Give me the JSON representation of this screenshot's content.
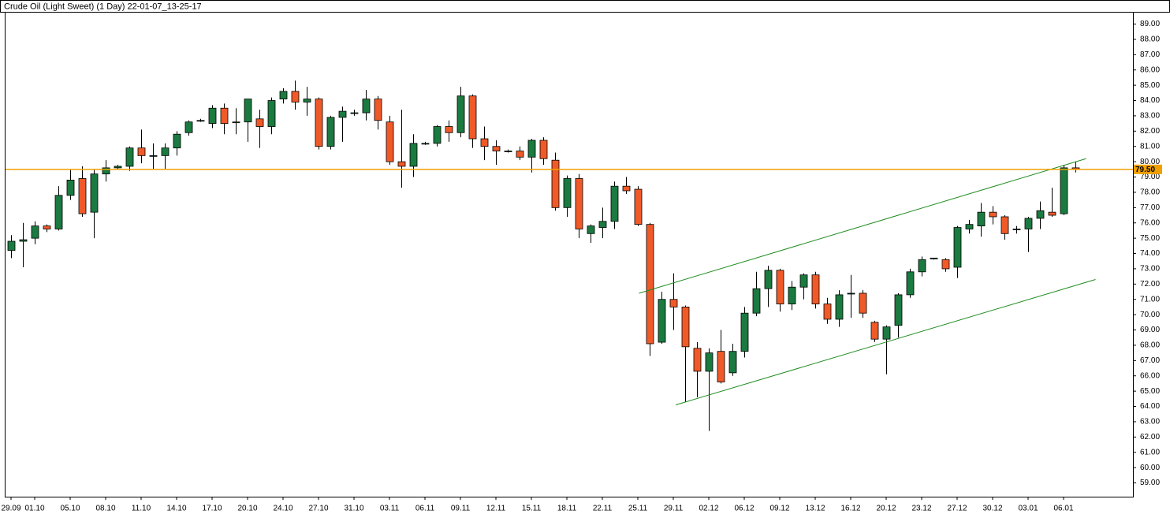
{
  "chart_data": {
    "type": "candlestick",
    "title": "Crude Oil (Light Sweet) (1 Day) 22-01-07_13-25-17",
    "categories": [
      "29.09",
      null,
      "01.10",
      null,
      null,
      "05.10",
      null,
      null,
      "08.10",
      null,
      null,
      "11.10",
      null,
      null,
      "14.10",
      null,
      null,
      "17.10",
      null,
      null,
      "20.10",
      null,
      null,
      "24.10",
      null,
      null,
      "27.10",
      null,
      null,
      "31.10",
      null,
      null,
      "03.11",
      null,
      null,
      "06.11",
      null,
      null,
      "09.11",
      null,
      null,
      "12.11",
      null,
      null,
      "15.11",
      null,
      null,
      "18.11",
      null,
      null,
      "22.11",
      null,
      null,
      "25.11",
      null,
      null,
      "29.11",
      null,
      null,
      "02.12",
      null,
      null,
      "06.12",
      null,
      null,
      "09.12",
      null,
      null,
      "13.12",
      null,
      null,
      "16.12",
      null,
      null,
      "20.12",
      null,
      null,
      "23.12",
      null,
      null,
      "27.12",
      null,
      null,
      "30.12",
      null,
      null,
      "03.01",
      null,
      null,
      "06.01",
      null
    ],
    "open": [
      74.2,
      74.8,
      75.0,
      75.8,
      75.6,
      77.8,
      78.9,
      76.7,
      79.2,
      79.6,
      79.7,
      80.9,
      80.4,
      80.4,
      80.9,
      81.9,
      82.7,
      82.5,
      83.5,
      82.6,
      82.6,
      82.8,
      82.3,
      84.1,
      84.6,
      83.9,
      84.1,
      81.0,
      82.9,
      83.2,
      83.2,
      84.1,
      82.6,
      80.0,
      79.7,
      81.2,
      81.2,
      82.3,
      81.9,
      84.3,
      81.5,
      81.0,
      80.7,
      80.7,
      80.3,
      81.4,
      80.1,
      77.0,
      78.9,
      75.3,
      75.7,
      76.1,
      78.4,
      78.2,
      75.9,
      68.2,
      71.0,
      70.5,
      67.8,
      66.3,
      67.6,
      66.2,
      67.6,
      70.1,
      71.7,
      72.9,
      70.7,
      71.8,
      72.6,
      70.7,
      69.7,
      71.4,
      71.4,
      69.5,
      68.4,
      69.3,
      71.3,
      72.8,
      73.7,
      73.6,
      73.1,
      75.6,
      75.8,
      76.7,
      76.4,
      75.6,
      75.6,
      76.3,
      76.7,
      76.6,
      79.6
    ],
    "high": [
      75.2,
      76.0,
      76.1,
      75.9,
      78.4,
      79.5,
      79.7,
      79.5,
      80.1,
      79.8,
      81.0,
      82.1,
      81.2,
      81.2,
      82.0,
      82.7,
      82.8,
      83.7,
      83.8,
      83.5,
      84.1,
      83.4,
      84.2,
      84.8,
      85.3,
      84.9,
      84.2,
      83.0,
      83.6,
      83.4,
      84.7,
      84.3,
      83.0,
      83.4,
      81.8,
      81.3,
      82.4,
      82.7,
      84.9,
      84.4,
      82.3,
      81.4,
      80.8,
      81.0,
      81.5,
      81.6,
      80.6,
      79.1,
      79.2,
      75.9,
      77.0,
      78.7,
      79.0,
      78.4,
      76.0,
      71.5,
      72.7,
      70.6,
      68.2,
      67.8,
      69.0,
      68.1,
      70.5,
      72.8,
      73.2,
      73.0,
      72.2,
      72.7,
      72.8,
      71.1,
      71.6,
      72.6,
      71.6,
      69.6,
      69.3,
      71.4,
      73.0,
      73.8,
      73.7,
      73.7,
      75.8,
      76.2,
      77.3,
      77.1,
      76.5,
      75.8,
      76.4,
      77.4,
      78.3,
      79.8,
      80.0
    ],
    "low": [
      73.7,
      73.1,
      74.6,
      75.4,
      75.5,
      77.5,
      76.4,
      75.0,
      78.7,
      79.5,
      79.4,
      79.9,
      79.5,
      79.5,
      80.4,
      81.7,
      82.6,
      82.2,
      81.8,
      81.8,
      81.3,
      80.9,
      81.8,
      83.8,
      83.4,
      83.0,
      80.8,
      80.8,
      81.3,
      83.0,
      82.7,
      82.1,
      79.8,
      78.3,
      79.0,
      81.1,
      81.0,
      81.3,
      81.6,
      80.9,
      80.1,
      79.8,
      80.6,
      80.1,
      79.3,
      79.8,
      76.8,
      76.4,
      75.0,
      74.7,
      75.0,
      75.6,
      77.9,
      75.8,
      67.3,
      68.1,
      69.0,
      64.3,
      64.6,
      62.4,
      65.5,
      66.0,
      67.2,
      69.9,
      70.5,
      70.2,
      70.3,
      71.0,
      70.4,
      69.4,
      69.2,
      69.8,
      69.8,
      68.2,
      66.1,
      68.5,
      71.1,
      72.5,
      73.6,
      72.8,
      72.4,
      75.3,
      75.1,
      75.9,
      74.9,
      75.3,
      74.1,
      75.6,
      76.4,
      76.5,
      79.3
    ],
    "close": [
      74.8,
      74.9,
      75.8,
      75.6,
      77.8,
      78.8,
      76.6,
      79.2,
      79.6,
      79.7,
      80.9,
      80.4,
      80.4,
      80.9,
      81.8,
      82.6,
      82.7,
      83.5,
      82.5,
      82.6,
      84.1,
      82.3,
      84.0,
      84.6,
      83.9,
      84.1,
      81.0,
      82.9,
      83.3,
      83.2,
      84.1,
      82.7,
      80.0,
      79.7,
      81.2,
      81.2,
      82.3,
      81.9,
      84.3,
      81.5,
      81.0,
      80.7,
      80.7,
      80.3,
      81.4,
      80.2,
      77.0,
      78.9,
      75.6,
      75.8,
      76.1,
      78.4,
      78.1,
      75.9,
      68.1,
      71.0,
      70.5,
      67.9,
      66.3,
      67.5,
      65.6,
      67.6,
      70.1,
      71.7,
      72.9,
      70.7,
      71.8,
      72.6,
      70.7,
      69.7,
      71.3,
      71.4,
      70.1,
      68.4,
      69.2,
      71.3,
      72.8,
      73.6,
      73.7,
      73.0,
      75.7,
      75.9,
      76.7,
      76.4,
      75.3,
      75.6,
      76.3,
      76.8,
      76.5,
      79.6,
      79.5
    ],
    "up_color": "#1a7a40",
    "down_color": "#f05a28",
    "ylim": [
      58.1,
      89.8
    ],
    "yticks": [
      {
        "value": 59,
        "label": "59.00"
      },
      {
        "value": 60,
        "label": "60.00"
      },
      {
        "value": 61,
        "label": "61.00"
      },
      {
        "value": 62,
        "label": "62.00"
      },
      {
        "value": 63,
        "label": "63.00"
      },
      {
        "value": 64,
        "label": "64.00"
      },
      {
        "value": 65,
        "label": "65.00"
      },
      {
        "value": 66,
        "label": "66.00"
      },
      {
        "value": 67,
        "label": "67.00"
      },
      {
        "value": 68,
        "label": "68.00"
      },
      {
        "value": 69,
        "label": "69.00"
      },
      {
        "value": 70,
        "label": "70.00"
      },
      {
        "value": 71,
        "label": "71.00"
      },
      {
        "value": 72,
        "label": "72.00"
      },
      {
        "value": 73,
        "label": "73.00"
      },
      {
        "value": 74,
        "label": "74.00"
      },
      {
        "value": 75,
        "label": "75.00"
      },
      {
        "value": 76,
        "label": "76.00"
      },
      {
        "value": 77,
        "label": "77.00"
      },
      {
        "value": 78,
        "label": "78.00"
      },
      {
        "value": 79,
        "label": "79.00"
      },
      {
        "value": 80,
        "label": "80.00"
      },
      {
        "value": 81,
        "label": "81.00"
      },
      {
        "value": 82,
        "label": "82.00"
      },
      {
        "value": 83,
        "label": "83.00"
      },
      {
        "value": 84,
        "label": "84.00"
      },
      {
        "value": 85,
        "label": "85.00"
      },
      {
        "value": 86,
        "label": "86.00"
      },
      {
        "value": 87,
        "label": "87.00"
      },
      {
        "value": 88,
        "label": "88.00"
      },
      {
        "value": 89,
        "label": "89.00"
      }
    ],
    "price_line": {
      "value": 79.5,
      "label": "79.50",
      "color": "#f0a000"
    },
    "trendlines": [
      {
        "points": [
          [
            53.1,
            71.4
          ],
          [
            90.9,
            80.2
          ]
        ],
        "color": "#1f8c1f"
      },
      {
        "points": [
          [
            56.2,
            64.1
          ],
          [
            91.7,
            72.3
          ]
        ],
        "color": "#1f8c1f"
      }
    ]
  }
}
